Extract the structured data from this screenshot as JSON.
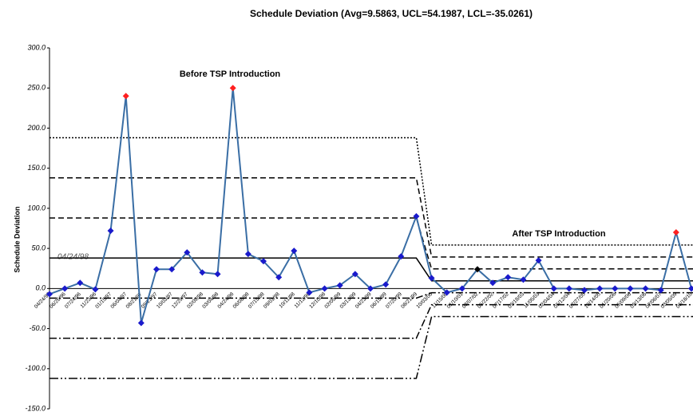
{
  "chart_data": {
    "type": "line",
    "title": "Schedule Deviation (Avg=9.5863, UCL=54.1987, LCL=-35.0261)",
    "y_label": "Schedule Deviation",
    "annotations": [
      "Before TSP Introduction",
      "After TSP Introduction",
      "04/24/98"
    ],
    "categories": [
      "04/24/96",
      "06/26/96",
      "07/24/96",
      "11/23/96",
      "01/15/97",
      "06/04/97",
      "08/21/97",
      "09/23/97",
      "10/03/97",
      "12/29/97",
      "02/09/98",
      "03/04/98",
      "04/24/98",
      "06/08/98",
      "07/15/98",
      "09/01/98",
      "10/11/98",
      "11/13/98",
      "12/10/98",
      "02/05/99",
      "03/13/99",
      "04/23/99",
      "06/15/99",
      "07/20/99",
      "08/21/99",
      "10/03/00",
      "11/15/00",
      "01/10/01",
      "03/07/02",
      "05/22/02",
      "07/17/02",
      "09/18/03",
      "11/05/03",
      "02/04/04",
      "05/12/04",
      "07/27/05",
      "10/14/05",
      "01/20/06",
      "05/09/06",
      "09/13/06",
      "02/06/07",
      "03/05/09",
      "06/18/10"
    ],
    "series": [
      {
        "name": "Schedule Deviation",
        "color": "#3a6ea5",
        "marker_color": "#1a1acc",
        "values": [
          -7,
          0,
          7,
          -1,
          72,
          240,
          -43,
          24,
          24,
          45,
          20,
          18,
          250,
          43,
          34,
          14,
          47,
          -5,
          0,
          4,
          18,
          0,
          5,
          40,
          90,
          13,
          -5,
          0,
          24,
          7,
          14,
          11,
          35,
          0,
          0,
          -2,
          0,
          0,
          0,
          0,
          -2,
          70,
          0
        ],
        "marker_colors": [
          "#1a1acc",
          "#1a1acc",
          "#1a1acc",
          "#1a1acc",
          "#1a1acc",
          "#ff2020",
          "#1a1acc",
          "#1a1acc",
          "#1a1acc",
          "#1a1acc",
          "#1a1acc",
          "#1a1acc",
          "#ff2020",
          "#1a1acc",
          "#1a1acc",
          "#1a1acc",
          "#1a1acc",
          "#1a1acc",
          "#1a1acc",
          "#1a1acc",
          "#1a1acc",
          "#1a1acc",
          "#1a1acc",
          "#1a1acc",
          "#1a1acc",
          "#1a1acc",
          "#1a1acc",
          "#1a1acc",
          "#000000",
          "#1a1acc",
          "#1a1acc",
          "#1a1acc",
          "#1a1acc",
          "#1a1acc",
          "#1a1acc",
          "#1a1acc",
          "#1a1acc",
          "#1a1acc",
          "#1a1acc",
          "#1a1acc",
          "#1a1acc",
          "#ff2020",
          "#1a1acc"
        ]
      }
    ],
    "phase_break": 24,
    "control_lines": [
      {
        "style": "dotted",
        "before": 188,
        "after": 54.1987
      },
      {
        "style": "dashed",
        "before": 138,
        "after": 39.33
      },
      {
        "style": "dashed",
        "before": 88,
        "after": 24.46
      },
      {
        "style": "solid",
        "before": 38,
        "after": 9.5863
      },
      {
        "style": "dashdot",
        "before": -12,
        "after": -5.28
      },
      {
        "style": "dashdot",
        "before": -62,
        "after": -20.15
      },
      {
        "style": "dashdotdot",
        "before": -112,
        "after": -35.0261
      }
    ],
    "ylim": [
      -150,
      300
    ],
    "yticks": [
      {
        "value": 300,
        "label": "300.0"
      },
      {
        "value": 250,
        "label": "250.0"
      },
      {
        "value": 200,
        "label": "200.0"
      },
      {
        "value": 150,
        "label": "150.0"
      },
      {
        "value": 100,
        "label": "100.0"
      },
      {
        "value": 50,
        "label": "50.0"
      },
      {
        "value": 0,
        "label": "0.0"
      },
      {
        "value": -50,
        "label": "-50.0"
      },
      {
        "value": -100,
        "label": "-100.0"
      },
      {
        "value": -150,
        "label": "-150.0"
      }
    ]
  }
}
